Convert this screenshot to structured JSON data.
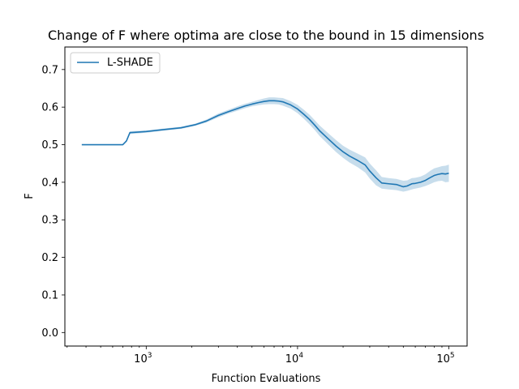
{
  "chart_data": {
    "type": "line",
    "title": "Change of F where optima are close to the bound in 15 dimensions",
    "xlabel": "Function Evaluations",
    "ylabel": "F",
    "x_scale": "log",
    "xlim": [
      290,
      132000
    ],
    "ylim": [
      -0.036,
      0.76
    ],
    "x_ticks": [
      {
        "value": 1000,
        "base": "10",
        "exp": "3"
      },
      {
        "value": 10000,
        "base": "10",
        "exp": "4"
      },
      {
        "value": 100000,
        "base": "10",
        "exp": "5"
      }
    ],
    "y_ticks": [
      {
        "value": 0.0,
        "label": "0.0"
      },
      {
        "value": 0.1,
        "label": "0.1"
      },
      {
        "value": 0.2,
        "label": "0.2"
      },
      {
        "value": 0.3,
        "label": "0.3"
      },
      {
        "value": 0.4,
        "label": "0.4"
      },
      {
        "value": 0.5,
        "label": "0.5"
      },
      {
        "value": 0.6,
        "label": "0.6"
      },
      {
        "value": 0.7,
        "label": "0.7"
      }
    ],
    "grid": false,
    "legend_position": "top-left",
    "series": [
      {
        "name": "L-SHADE",
        "color": "#1f77b4",
        "band_opacity": 0.25,
        "x": [
          375,
          500,
          650,
          700,
          740,
          780,
          1000,
          1300,
          1700,
          2100,
          2500,
          3000,
          3500,
          4000,
          4500,
          5000,
          5500,
          6000,
          6500,
          7000,
          7500,
          8000,
          9000,
          10000,
          11000,
          12000,
          13000,
          14000,
          16000,
          18000,
          20000,
          22000,
          25000,
          28000,
          30000,
          33000,
          36000,
          40000,
          45000,
          50000,
          53000,
          57000,
          60000,
          65000,
          70000,
          75000,
          80000,
          85000,
          90000,
          95000,
          100000
        ],
        "y": [
          0.5,
          0.5,
          0.5,
          0.5,
          0.51,
          0.532,
          0.535,
          0.54,
          0.545,
          0.553,
          0.563,
          0.578,
          0.588,
          0.596,
          0.603,
          0.608,
          0.612,
          0.615,
          0.617,
          0.617,
          0.616,
          0.614,
          0.606,
          0.595,
          0.581,
          0.567,
          0.552,
          0.537,
          0.515,
          0.496,
          0.481,
          0.47,
          0.458,
          0.446,
          0.43,
          0.412,
          0.398,
          0.396,
          0.394,
          0.388,
          0.39,
          0.396,
          0.397,
          0.4,
          0.405,
          0.412,
          0.418,
          0.421,
          0.423,
          0.422,
          0.424
        ],
        "lower": [
          0.5,
          0.5,
          0.5,
          0.5,
          0.508,
          0.528,
          0.532,
          0.537,
          0.542,
          0.55,
          0.559,
          0.573,
          0.583,
          0.59,
          0.597,
          0.602,
          0.605,
          0.607,
          0.608,
          0.608,
          0.607,
          0.604,
          0.596,
          0.584,
          0.569,
          0.554,
          0.539,
          0.523,
          0.5,
          0.48,
          0.465,
          0.453,
          0.44,
          0.426,
          0.41,
          0.392,
          0.383,
          0.381,
          0.379,
          0.375,
          0.377,
          0.381,
          0.383,
          0.386,
          0.39,
          0.395,
          0.4,
          0.403,
          0.404,
          0.4,
          0.401
        ],
        "upper": [
          0.5,
          0.5,
          0.5,
          0.5,
          0.513,
          0.536,
          0.538,
          0.543,
          0.548,
          0.556,
          0.567,
          0.583,
          0.593,
          0.602,
          0.609,
          0.614,
          0.619,
          0.623,
          0.626,
          0.626,
          0.625,
          0.624,
          0.616,
          0.606,
          0.593,
          0.58,
          0.565,
          0.551,
          0.53,
          0.512,
          0.497,
          0.487,
          0.476,
          0.466,
          0.45,
          0.432,
          0.414,
          0.411,
          0.409,
          0.404,
          0.405,
          0.411,
          0.412,
          0.415,
          0.421,
          0.43,
          0.437,
          0.44,
          0.443,
          0.444,
          0.447
        ]
      }
    ]
  }
}
